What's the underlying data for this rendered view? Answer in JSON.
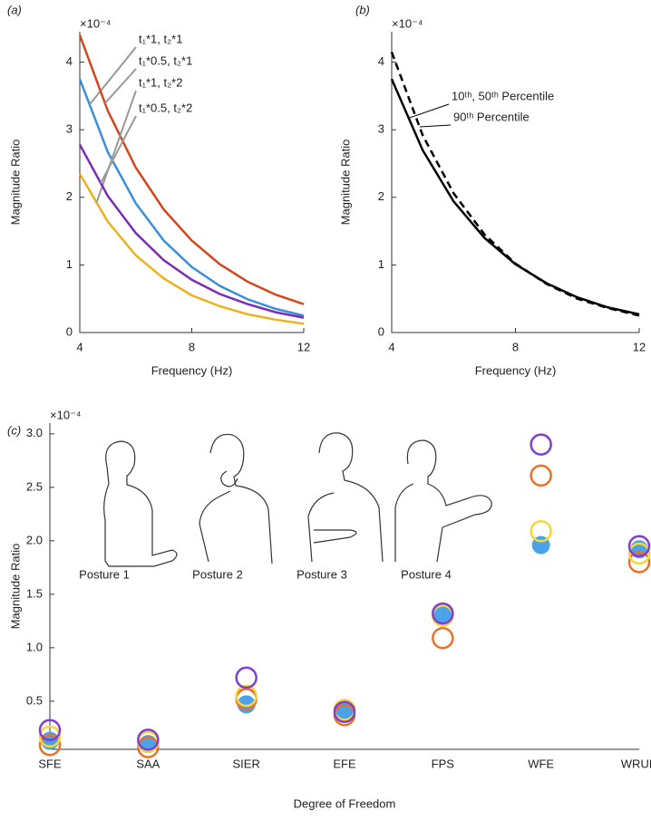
{
  "chart_data": [
    {
      "type": "line",
      "panel_label": "(a)",
      "y_multiplier": "×10⁻⁴",
      "xlabel": "Frequency (Hz)",
      "ylabel": "Magnitude Ratio",
      "x": [
        4,
        5,
        6,
        7,
        8,
        9,
        10,
        11,
        12
      ],
      "series": [
        {
          "name": "t₁*1, t₂*1",
          "color": "#3a8fdc",
          "values": [
            3.75,
            2.67,
            1.91,
            1.36,
            0.97,
            0.69,
            0.49,
            0.35,
            0.25
          ]
        },
        {
          "name": "t₁*0.5, t₂*1",
          "color": "#d4471c",
          "values": [
            4.4,
            3.28,
            2.44,
            1.82,
            1.36,
            1.01,
            0.75,
            0.56,
            0.42
          ]
        },
        {
          "name": "t₁*1, t₂*2",
          "color": "#ebb21e",
          "values": [
            2.35,
            1.64,
            1.14,
            0.8,
            0.55,
            0.39,
            0.27,
            0.19,
            0.13
          ]
        },
        {
          "name": "t₁*0.5, t₂*2",
          "color": "#7a2db8",
          "values": [
            2.78,
            2.02,
            1.47,
            1.07,
            0.78,
            0.57,
            0.42,
            0.3,
            0.22
          ]
        }
      ],
      "xlim": [
        4,
        12
      ],
      "xticks": [
        4,
        8,
        12
      ],
      "ylim": [
        0,
        4.45
      ],
      "yticks": [
        0,
        1,
        2,
        3,
        4
      ]
    },
    {
      "type": "line",
      "panel_label": "(b)",
      "y_multiplier": "×10⁻⁴",
      "xlabel": "Frequency (Hz)",
      "ylabel": "Magnitude Ratio",
      "x": [
        4,
        5,
        6,
        7,
        8,
        9,
        10,
        11,
        12
      ],
      "series": [
        {
          "name": "10ᵗʰ, 50ᵗʰ Percentile",
          "color": "#000000",
          "dashed": false,
          "values": [
            3.75,
            2.7,
            1.94,
            1.4,
            1.01,
            0.73,
            0.52,
            0.37,
            0.27
          ]
        },
        {
          "name": "90ᵗʰ Percentile",
          "color": "#000000",
          "dashed": true,
          "values": [
            4.15,
            2.92,
            2.06,
            1.45,
            1.02,
            0.72,
            0.5,
            0.36,
            0.25
          ]
        }
      ],
      "xlim": [
        4,
        12
      ],
      "xticks": [
        4,
        8,
        12
      ],
      "ylim": [
        0,
        4.45
      ],
      "yticks": [
        0,
        1,
        2,
        3,
        4
      ]
    },
    {
      "type": "scatter",
      "panel_label": "(c)",
      "y_multiplier": "×10⁻⁴",
      "xlabel": "Degree of Freedom",
      "ylabel": "Magnitude Ratio",
      "categories": [
        "SFE",
        "SAA",
        "SIER",
        "EFE",
        "FPS",
        "WFE",
        "WRUD"
      ],
      "series": [
        {
          "name": "Posture 1",
          "color": "#4aa3e8",
          "marker": "filled",
          "values": [
            0.13,
            0.1,
            0.47,
            0.4,
            1.31,
            1.96,
            1.92
          ]
        },
        {
          "name": "Posture 2",
          "color": "#e8722a",
          "marker": "open",
          "values": [
            0.09,
            0.07,
            0.52,
            0.37,
            1.09,
            2.61,
            1.8
          ]
        },
        {
          "name": "Posture 3",
          "color": "#f6d63c",
          "marker": "open",
          "values": [
            0.17,
            0.12,
            0.55,
            0.42,
            1.3,
            2.09,
            1.88
          ]
        },
        {
          "name": "Posture 4",
          "color": "#7f3fd2",
          "marker": "open",
          "values": [
            0.23,
            0.14,
            0.72,
            0.4,
            1.32,
            2.9,
            1.95
          ]
        }
      ],
      "ylim": [
        0.05,
        3.1
      ],
      "yticks": [
        0.5,
        {
          "value": 1,
          "label": "1.0"
        },
        1.5,
        {
          "value": 2,
          "label": "2.0"
        },
        2.5,
        {
          "value": 3,
          "label": "3.0"
        }
      ]
    }
  ]
}
